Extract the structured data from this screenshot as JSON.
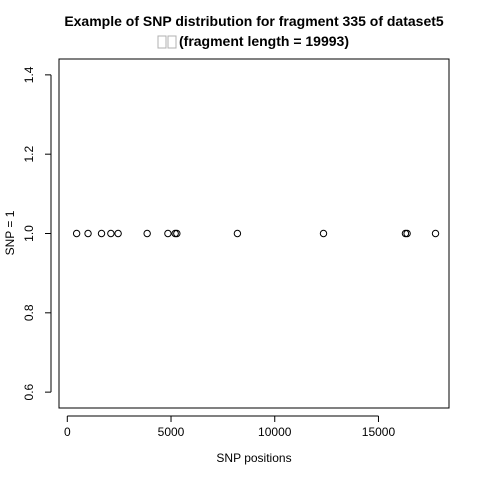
{
  "chart_data": {
    "type": "scatter",
    "title_line1": "Example of SNP distribution for fragment 335 of dataset5",
    "title_line2_prefix": "□□",
    "title_line2": "(fragment length = 19993)",
    "xlabel": "SNP positions",
    "ylabel": "SNP = 1",
    "xlim": [
      -400,
      18400
    ],
    "ylim": [
      0.56,
      1.44
    ],
    "xticks": [
      0,
      5000,
      10000,
      15000
    ],
    "yticks": [
      0.6,
      0.8,
      1.0,
      1.2,
      1.4
    ],
    "ytick_labels": [
      "0.6",
      "0.8",
      "1.0",
      "1.2",
      "1.4"
    ],
    "x": [
      450,
      1000,
      1650,
      2100,
      2450,
      3850,
      4850,
      5200,
      5280,
      8200,
      12350,
      16300,
      16380,
      17750
    ],
    "y": [
      1,
      1,
      1,
      1,
      1,
      1,
      1,
      1,
      1,
      1,
      1,
      1,
      1,
      1
    ],
    "marker": "open-circle",
    "box": true
  }
}
